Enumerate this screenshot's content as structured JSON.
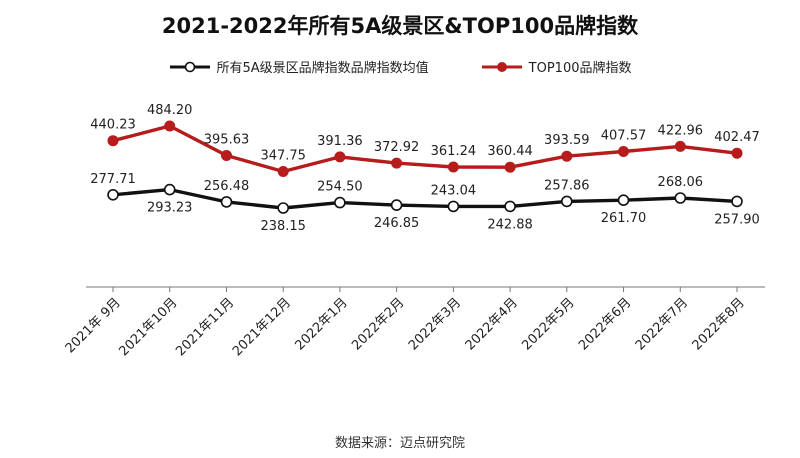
{
  "chart_data": {
    "type": "line",
    "title": "2021-2022年所有5A级景区&TOP100品牌指数",
    "categories": [
      "2021年 9月",
      "2021年10月",
      "2021年11月",
      "2021年12月",
      "2022年1月",
      "2022年2月",
      "2022年3月",
      "2022年4月",
      "2022年5月",
      "2022年6月",
      "2022年7月",
      "2022年8月"
    ],
    "series": [
      {
        "name": "所有5A级景区品牌指数品牌指数均值",
        "color": "#111111",
        "marker": "hollow-circle",
        "values": [
          277.71,
          293.23,
          256.48,
          238.15,
          254.5,
          246.85,
          243.04,
          242.88,
          257.86,
          261.7,
          268.06,
          257.9
        ],
        "labels": [
          "277.71",
          "293.23",
          "256.48",
          "238.15",
          "254.50",
          "246.85",
          "243.04",
          "242.88",
          "257.86",
          "261.70",
          "268.06",
          "257.90"
        ]
      },
      {
        "name": "TOP100品牌指数",
        "color": "#b71c1c",
        "marker": "filled-circle",
        "values": [
          440.23,
          484.2,
          395.63,
          347.75,
          391.36,
          372.92,
          361.24,
          360.44,
          393.59,
          407.57,
          422.96,
          402.47
        ],
        "labels": [
          "440.23",
          "484.20",
          "395.63",
          "347.75",
          "391.36",
          "372.92",
          "361.24",
          "360.44",
          "393.59",
          "407.57",
          "422.96",
          "402.47"
        ]
      }
    ],
    "grid": false,
    "legend_position": "top-center"
  },
  "source_text": "数据来源：迈点研究院"
}
